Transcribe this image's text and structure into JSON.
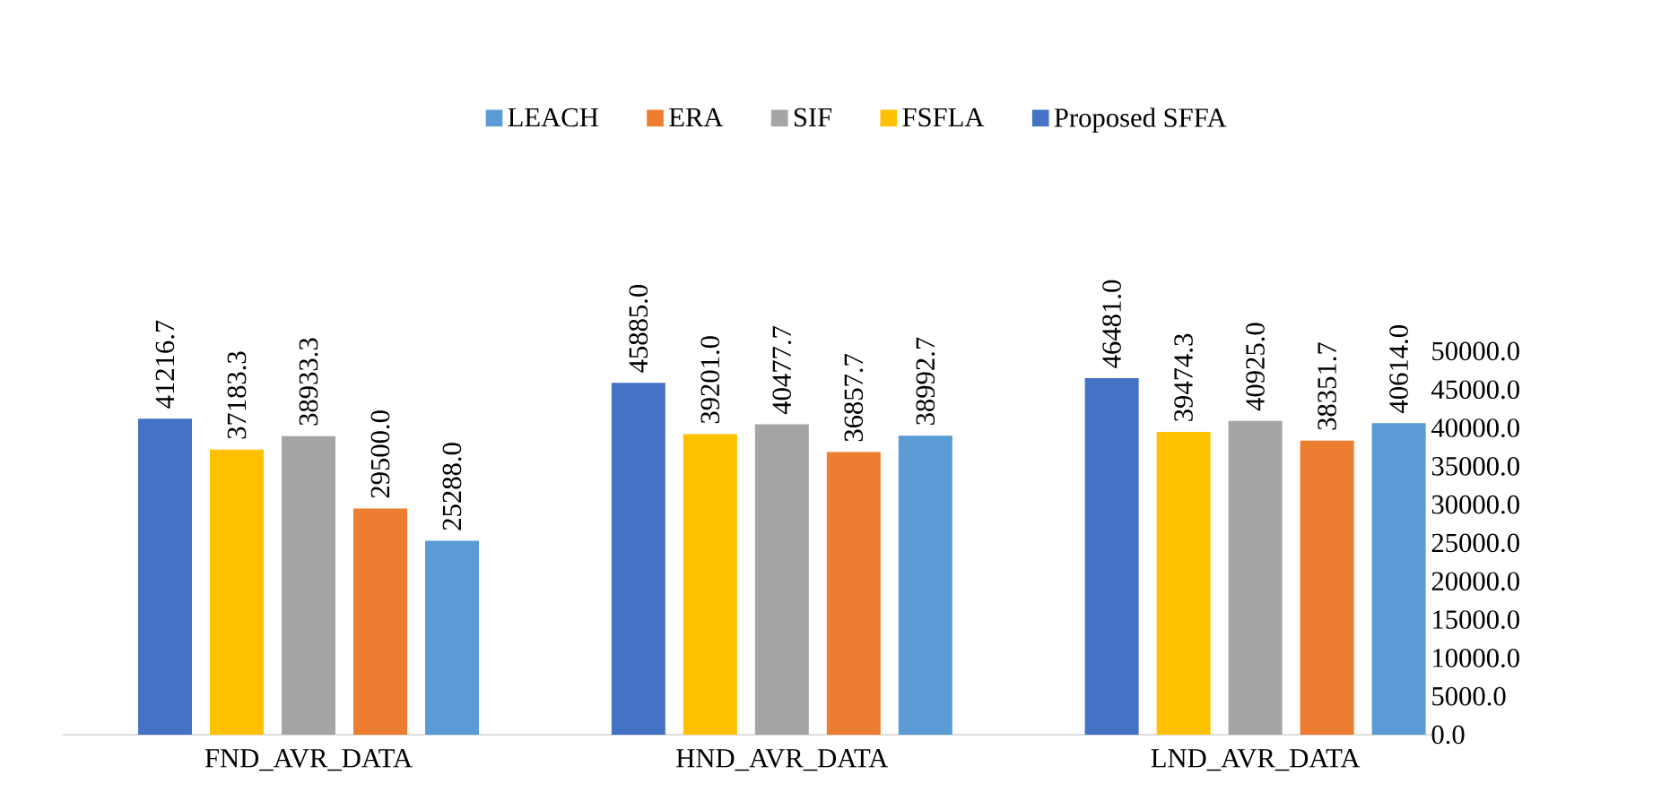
{
  "chart_data": {
    "type": "bar",
    "categories": [
      "FND_AVR_DATA",
      "HND_AVR_DATA",
      "LND_AVR_DATA"
    ],
    "series": [
      {
        "name": "LEACH",
        "color": "#5b9bd5",
        "values": [
          25288.0,
          38992.7,
          40614.0
        ],
        "value_labels": [
          "25288.0",
          "38992.7",
          "40614.0"
        ]
      },
      {
        "name": "ERA",
        "color": "#ed7d31",
        "values": [
          29500.0,
          36857.7,
          38351.7
        ],
        "value_labels": [
          "29500.0",
          "36857.7",
          "38351.7"
        ]
      },
      {
        "name": "SIF",
        "color": "#a5a5a5",
        "values": [
          38933.3,
          40477.7,
          40925.0
        ],
        "value_labels": [
          "38933.3",
          "40477.7",
          "40925.0"
        ]
      },
      {
        "name": "FSFLA",
        "color": "#ffc000",
        "values": [
          37183.3,
          39201.0,
          39474.3
        ],
        "value_labels": [
          "37183.3",
          "39201.0",
          "39474.3"
        ]
      },
      {
        "name": "Proposed SFFA",
        "color": "#4472c4",
        "values": [
          41216.7,
          45885.0,
          46481.0
        ],
        "value_labels": [
          "41216.7",
          "45885.0",
          "46481.0"
        ]
      }
    ],
    "ylim": [
      0,
      50000
    ],
    "yticks": [
      {
        "value": 0,
        "label": "0.0"
      },
      {
        "value": 5000,
        "label": "5000.0"
      },
      {
        "value": 10000,
        "label": "10000.0"
      },
      {
        "value": 15000,
        "label": "15000.0"
      },
      {
        "value": 20000,
        "label": "20000.0"
      },
      {
        "value": 25000,
        "label": "25000.0"
      },
      {
        "value": 30000,
        "label": "30000.0"
      },
      {
        "value": 35000,
        "label": "35000.0"
      },
      {
        "value": 40000,
        "label": "40000.0"
      },
      {
        "value": 45000,
        "label": "45000.0"
      },
      {
        "value": 50000,
        "label": "50000.0"
      }
    ],
    "legend": "top"
  }
}
